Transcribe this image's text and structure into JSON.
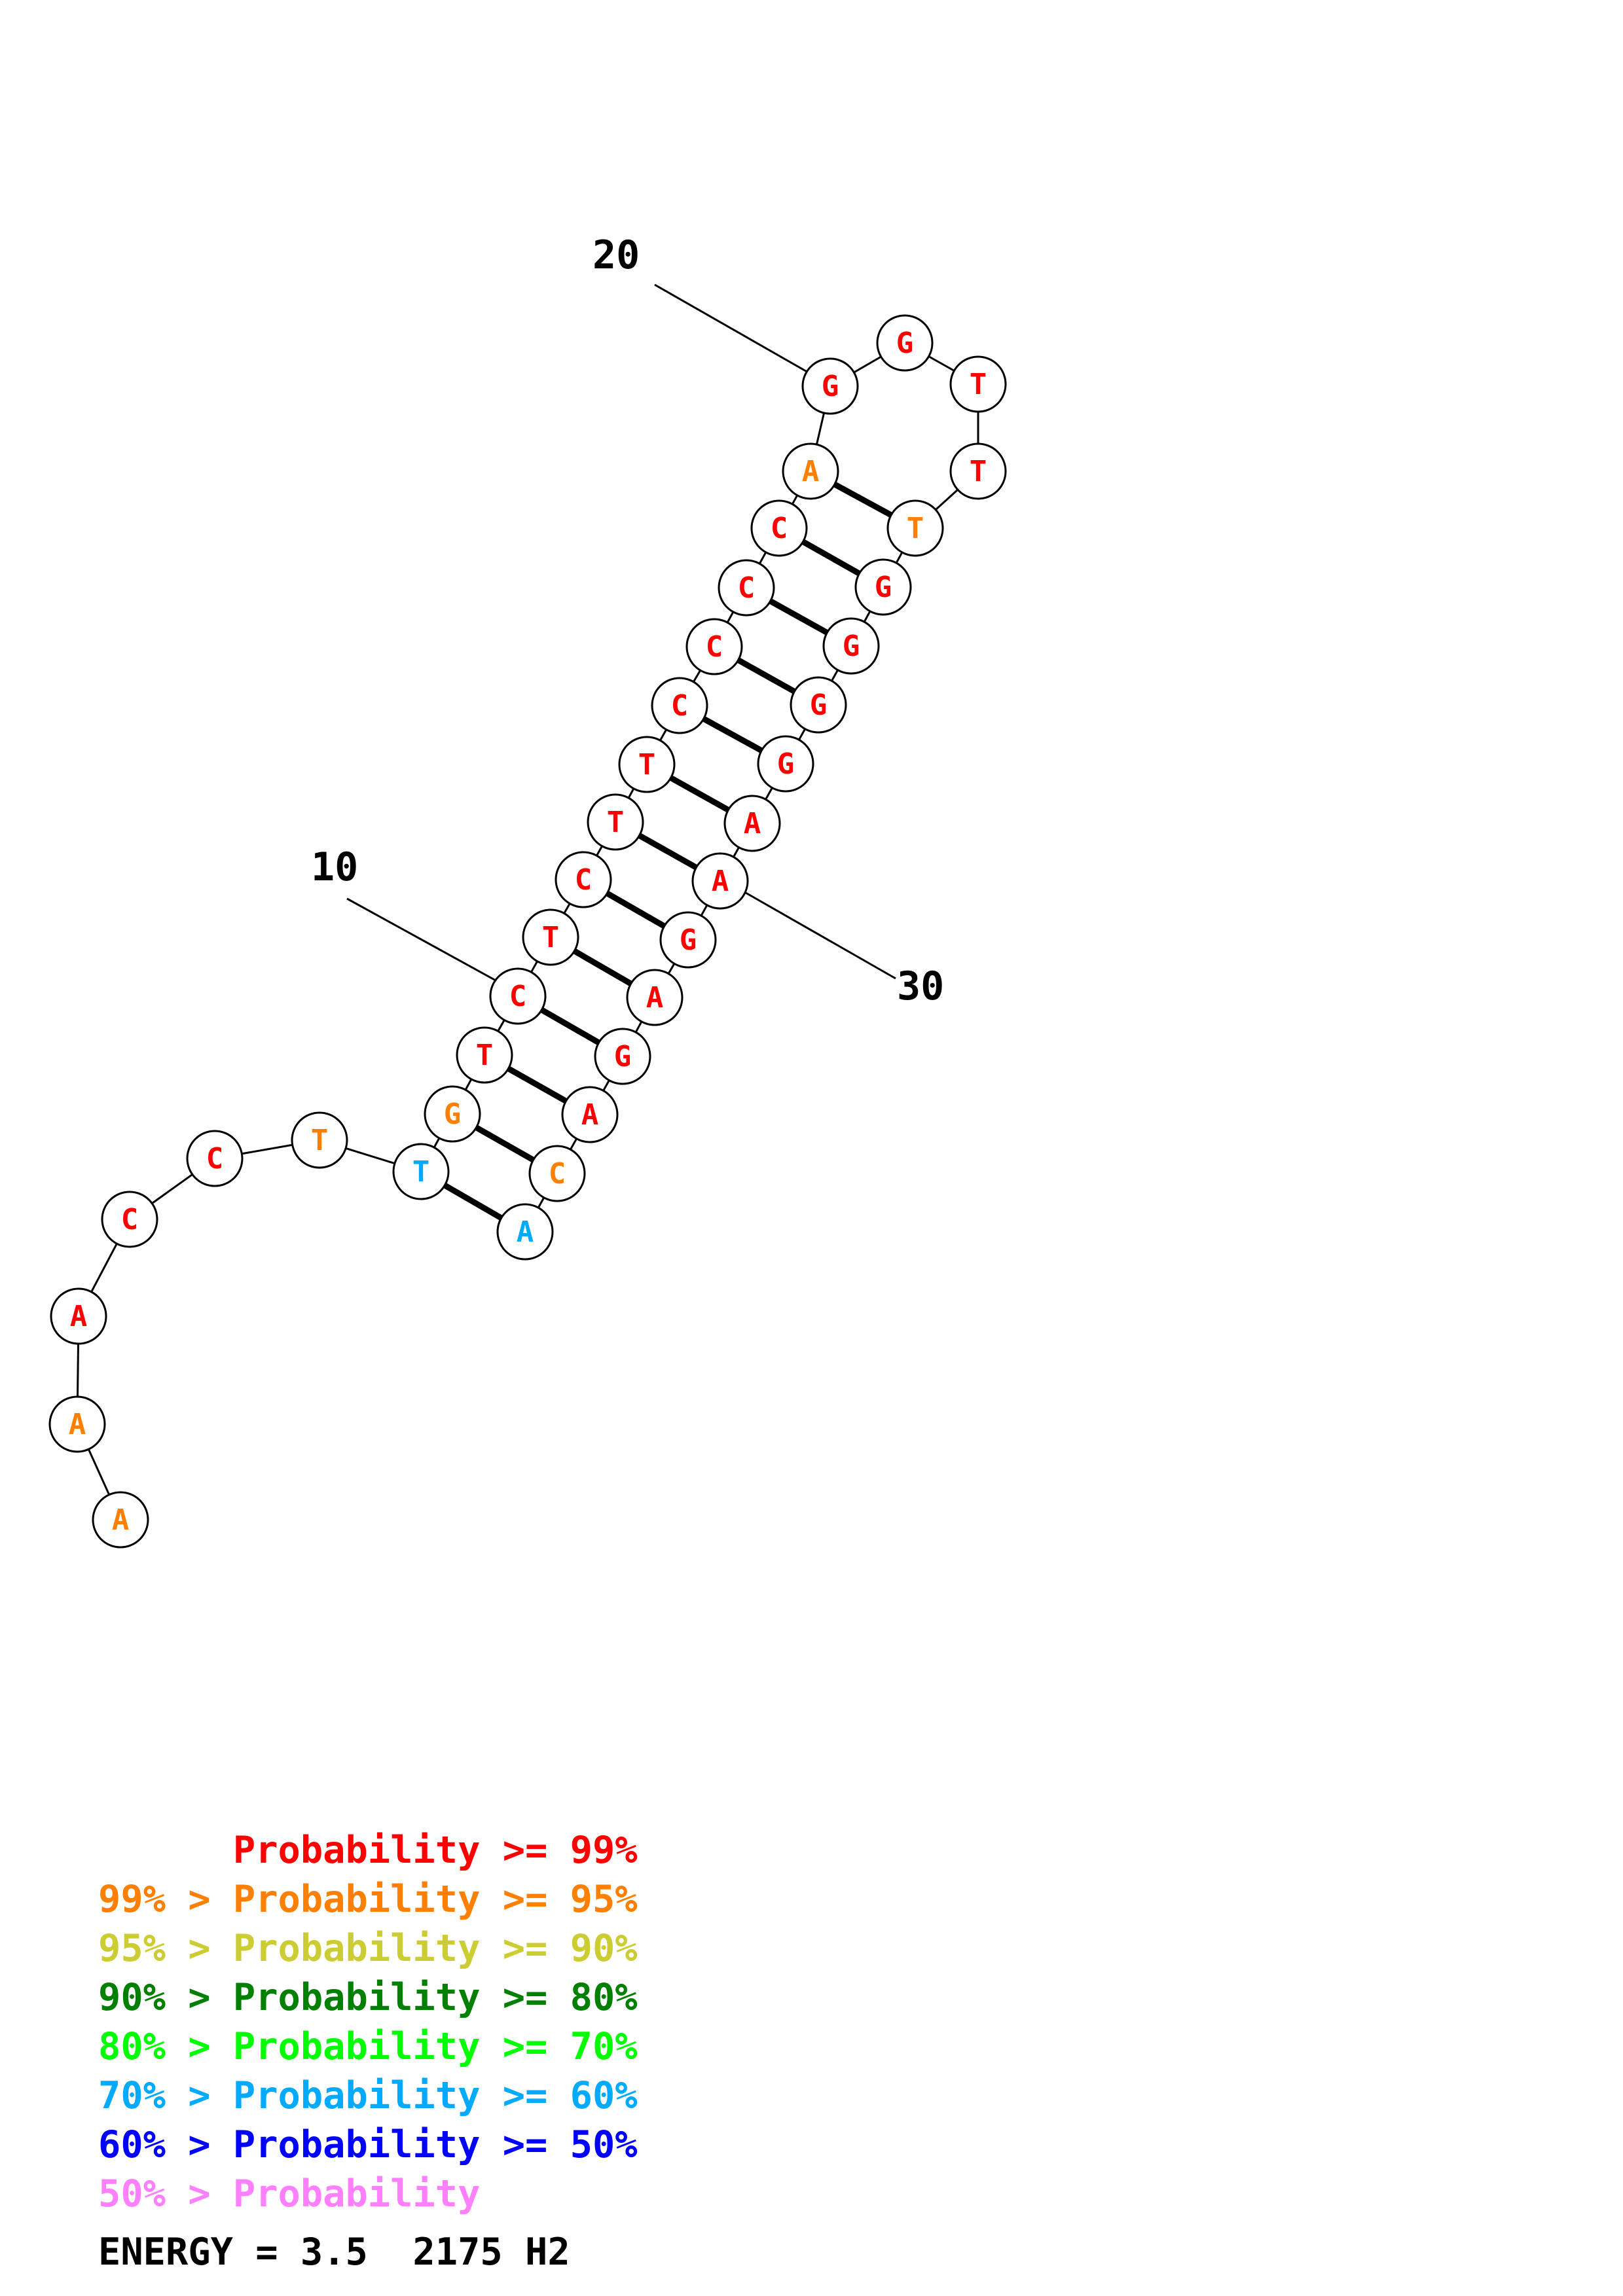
{
  "sequence": [
    {
      "n": 1,
      "base": "A",
      "prob_class": 1
    },
    {
      "n": 2,
      "base": "A",
      "prob_class": 1
    },
    {
      "n": 3,
      "base": "A",
      "prob_class": 0
    },
    {
      "n": 4,
      "base": "C",
      "prob_class": 0
    },
    {
      "n": 5,
      "base": "C",
      "prob_class": 0
    },
    {
      "n": 6,
      "base": "T",
      "prob_class": 1
    },
    {
      "n": 7,
      "base": "T",
      "prob_class": 5
    },
    {
      "n": 8,
      "base": "G",
      "prob_class": 1
    },
    {
      "n": 9,
      "base": "T",
      "prob_class": 0
    },
    {
      "n": 10,
      "base": "C",
      "prob_class": 0
    },
    {
      "n": 11,
      "base": "T",
      "prob_class": 0
    },
    {
      "n": 12,
      "base": "C",
      "prob_class": 0
    },
    {
      "n": 13,
      "base": "T",
      "prob_class": 0
    },
    {
      "n": 14,
      "base": "T",
      "prob_class": 0
    },
    {
      "n": 15,
      "base": "C",
      "prob_class": 0
    },
    {
      "n": 16,
      "base": "C",
      "prob_class": 0
    },
    {
      "n": 17,
      "base": "C",
      "prob_class": 0
    },
    {
      "n": 18,
      "base": "C",
      "prob_class": 0
    },
    {
      "n": 19,
      "base": "A",
      "prob_class": 1
    },
    {
      "n": 20,
      "base": "G",
      "prob_class": 0
    },
    {
      "n": 21,
      "base": "G",
      "prob_class": 0
    },
    {
      "n": 22,
      "base": "T",
      "prob_class": 0
    },
    {
      "n": 23,
      "base": "T",
      "prob_class": 0
    },
    {
      "n": 24,
      "base": "T",
      "prob_class": 1
    },
    {
      "n": 25,
      "base": "G",
      "prob_class": 0
    },
    {
      "n": 26,
      "base": "G",
      "prob_class": 0
    },
    {
      "n": 27,
      "base": "G",
      "prob_class": 0
    },
    {
      "n": 28,
      "base": "G",
      "prob_class": 0
    },
    {
      "n": 29,
      "base": "A",
      "prob_class": 0
    },
    {
      "n": 30,
      "base": "A",
      "prob_class": 0
    },
    {
      "n": 31,
      "base": "G",
      "prob_class": 0
    },
    {
      "n": 32,
      "base": "A",
      "prob_class": 0
    },
    {
      "n": 33,
      "base": "G",
      "prob_class": 0
    },
    {
      "n": 34,
      "base": "A",
      "prob_class": 0
    },
    {
      "n": 35,
      "base": "C",
      "prob_class": 1
    },
    {
      "n": 36,
      "base": "A",
      "prob_class": 5
    }
  ],
  "pairs": [
    [
      7,
      36
    ],
    [
      8,
      35
    ],
    [
      9,
      34
    ],
    [
      10,
      33
    ],
    [
      11,
      32
    ],
    [
      12,
      31
    ],
    [
      13,
      30
    ],
    [
      14,
      29
    ],
    [
      15,
      28
    ],
    [
      16,
      27
    ],
    [
      17,
      26
    ],
    [
      18,
      25
    ],
    [
      19,
      24
    ]
  ],
  "position_labels": [
    {
      "n": 10,
      "text": "10"
    },
    {
      "n": 20,
      "text": "20"
    },
    {
      "n": 30,
      "text": "30"
    }
  ],
  "legend": {
    "colors": [
      "#ff0000",
      "#ff8000",
      "#cccc33",
      "#008000",
      "#00ff00",
      "#00aaff",
      "#0000ff",
      "#ff80ff"
    ],
    "lines": [
      "      Probability >= 99%",
      "99% > Probability >= 95%",
      "95% > Probability >= 90%",
      "90% > Probability >= 80%",
      "80% > Probability >= 70%",
      "70% > Probability >= 60%",
      "60% > Probability >= 50%",
      "50% > Probability"
    ]
  },
  "energy_text": "ENERGY = 3.5  2175 H2"
}
